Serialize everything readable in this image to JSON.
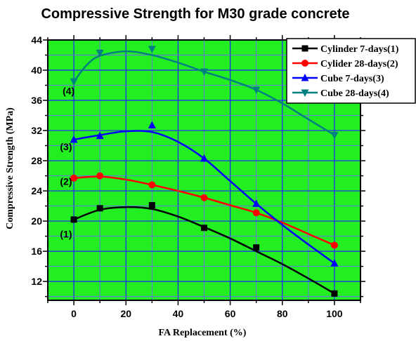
{
  "chart_data": {
    "type": "line",
    "title": "Compressive Strength for M30 grade concrete",
    "xlabel": "FA Replacement (%)",
    "ylabel": "Compressive Strength (MPa)",
    "xlim": [
      -10,
      110
    ],
    "ylim": [
      9.5,
      44
    ],
    "xticks": [
      0,
      20,
      40,
      60,
      80,
      100
    ],
    "yticks": [
      12,
      16,
      20,
      24,
      28,
      32,
      36,
      40,
      44
    ],
    "grid": true,
    "legend_position": "top-right",
    "plot_background": "#22ee22",
    "x": [
      0,
      10,
      30,
      50,
      70,
      100
    ],
    "series": [
      {
        "name": "Cylinder 7-days(1)",
        "color": "#000000",
        "marker": "square",
        "values": [
          20.2,
          21.7,
          22.1,
          19.1,
          16.5,
          10.4
        ],
        "fit": [
          [
            0,
            20.2
          ],
          [
            10,
            21.5
          ],
          [
            20,
            21.85
          ],
          [
            30,
            21.6
          ],
          [
            40,
            20.6
          ],
          [
            50,
            19.2
          ],
          [
            60,
            17.7
          ],
          [
            70,
            16.0
          ],
          [
            80,
            14.3
          ],
          [
            90,
            12.4
          ],
          [
            100,
            10.4
          ]
        ]
      },
      {
        "name": "Cylider 28-days(2)",
        "color": "#ff0000",
        "marker": "circle",
        "values": [
          25.7,
          26.0,
          24.8,
          23.1,
          21.1,
          16.8
        ],
        "fit": [
          [
            0,
            25.7
          ],
          [
            10,
            25.9
          ],
          [
            20,
            25.5
          ],
          [
            30,
            24.8
          ],
          [
            40,
            24.0
          ],
          [
            50,
            23.1
          ],
          [
            60,
            22.1
          ],
          [
            70,
            21.1
          ],
          [
            80,
            19.8
          ],
          [
            90,
            18.3
          ],
          [
            100,
            16.8
          ]
        ]
      },
      {
        "name": "Cube 7-days(3)",
        "color": "#0000ff",
        "marker": "triangle-up",
        "values": [
          30.8,
          31.3,
          32.7,
          28.3,
          22.3,
          14.4
        ],
        "fit": [
          [
            0,
            30.8
          ],
          [
            10,
            31.4
          ],
          [
            20,
            31.9
          ],
          [
            30,
            31.8
          ],
          [
            40,
            30.5
          ],
          [
            50,
            28.3
          ],
          [
            60,
            25.3
          ],
          [
            70,
            22.3
          ],
          [
            80,
            19.5
          ],
          [
            90,
            16.9
          ],
          [
            100,
            14.4
          ]
        ]
      },
      {
        "name": "Cube 28-days(4)",
        "color": "#008080",
        "marker": "triangle-down",
        "values": [
          38.5,
          42.3,
          42.8,
          39.8,
          37.4,
          31.4
        ],
        "fit": [
          [
            0,
            38.5
          ],
          [
            5,
            40.7
          ],
          [
            10,
            41.9
          ],
          [
            20,
            42.5
          ],
          [
            30,
            42.0
          ],
          [
            40,
            41.0
          ],
          [
            50,
            39.8
          ],
          [
            60,
            38.7
          ],
          [
            70,
            37.4
          ],
          [
            80,
            35.6
          ],
          [
            90,
            33.5
          ],
          [
            100,
            31.4
          ]
        ]
      }
    ],
    "annotations": [
      {
        "text": "(1)",
        "x": -3,
        "y": 17.8
      },
      {
        "text": "(2)",
        "x": -3,
        "y": 24.8
      },
      {
        "text": "(3)",
        "x": -3,
        "y": 29.4
      },
      {
        "text": "(4)",
        "x": -2,
        "y": 36.8
      }
    ]
  }
}
